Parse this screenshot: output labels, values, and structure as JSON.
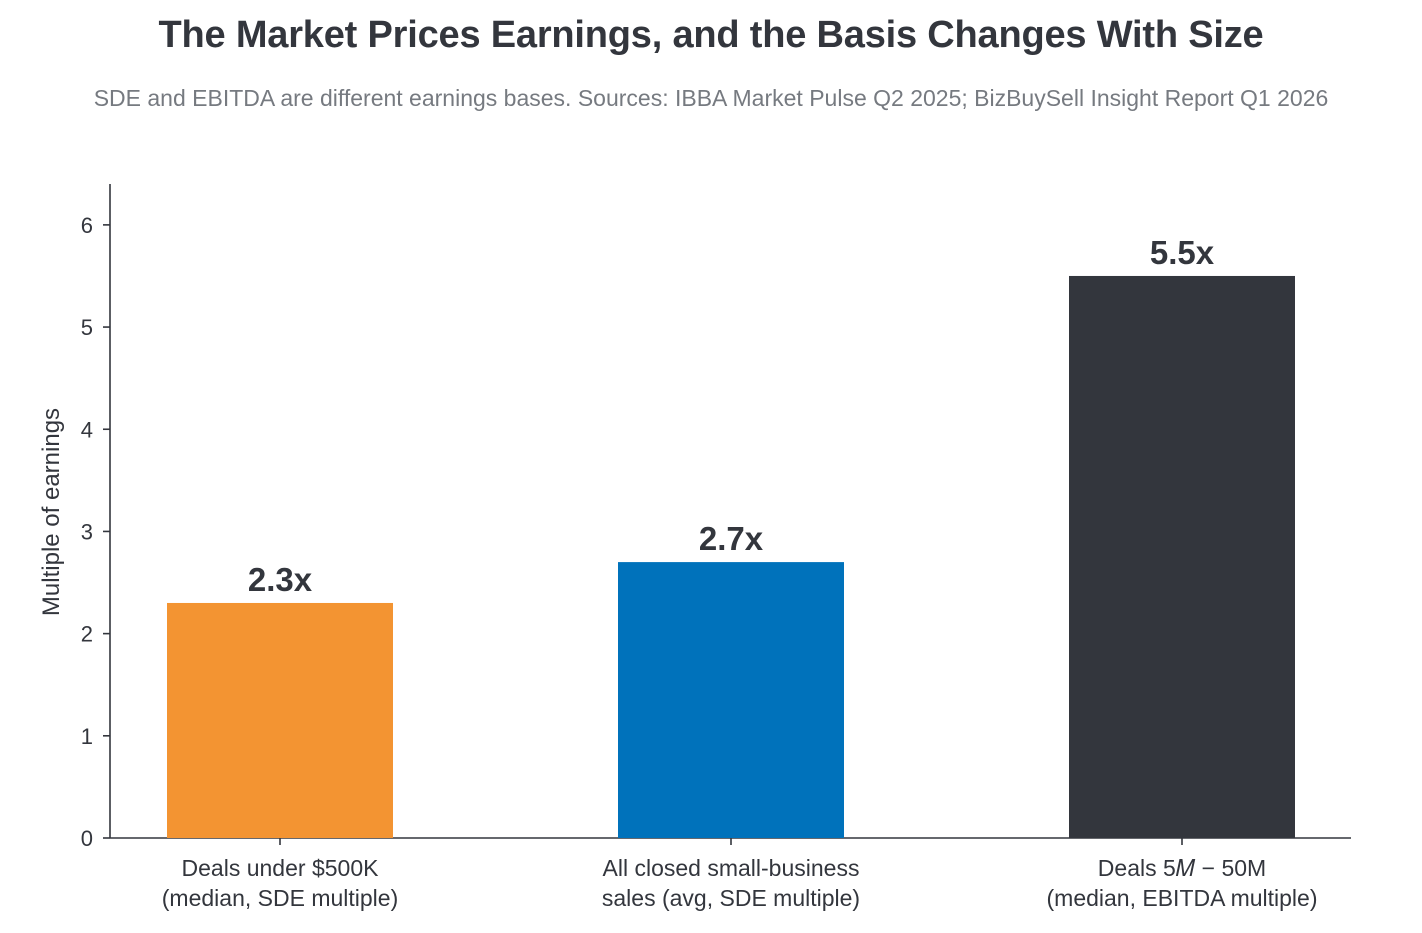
{
  "chart_data": {
    "type": "bar",
    "title": "The Market Prices Earnings, and the Basis Changes With Size",
    "subtitle": "SDE and EBITDA are different earnings bases. Sources: IBBA Market Pulse Q2 2025; BizBuySell Insight Report Q1 2026",
    "xlabel": "",
    "ylabel": "Multiple of earnings",
    "ylim": [
      0,
      6.4
    ],
    "yticks": [
      "0",
      "1",
      "2",
      "3",
      "4",
      "5",
      "6"
    ],
    "grid": false,
    "categories": [
      [
        "Deals under $500K",
        "(median, SDE multiple)"
      ],
      [
        "All closed small-business",
        "sales (avg, SDE multiple)"
      ],
      [
        "Deals 5𝑀 − 50M",
        "(median, EBITDA multiple)"
      ]
    ],
    "values": [
      2.3,
      2.7,
      5.5
    ],
    "value_labels": [
      "2.3x",
      "2.7x",
      "5.5x"
    ],
    "colors": [
      "#f39432",
      "#0072bb",
      "#33363d"
    ]
  }
}
